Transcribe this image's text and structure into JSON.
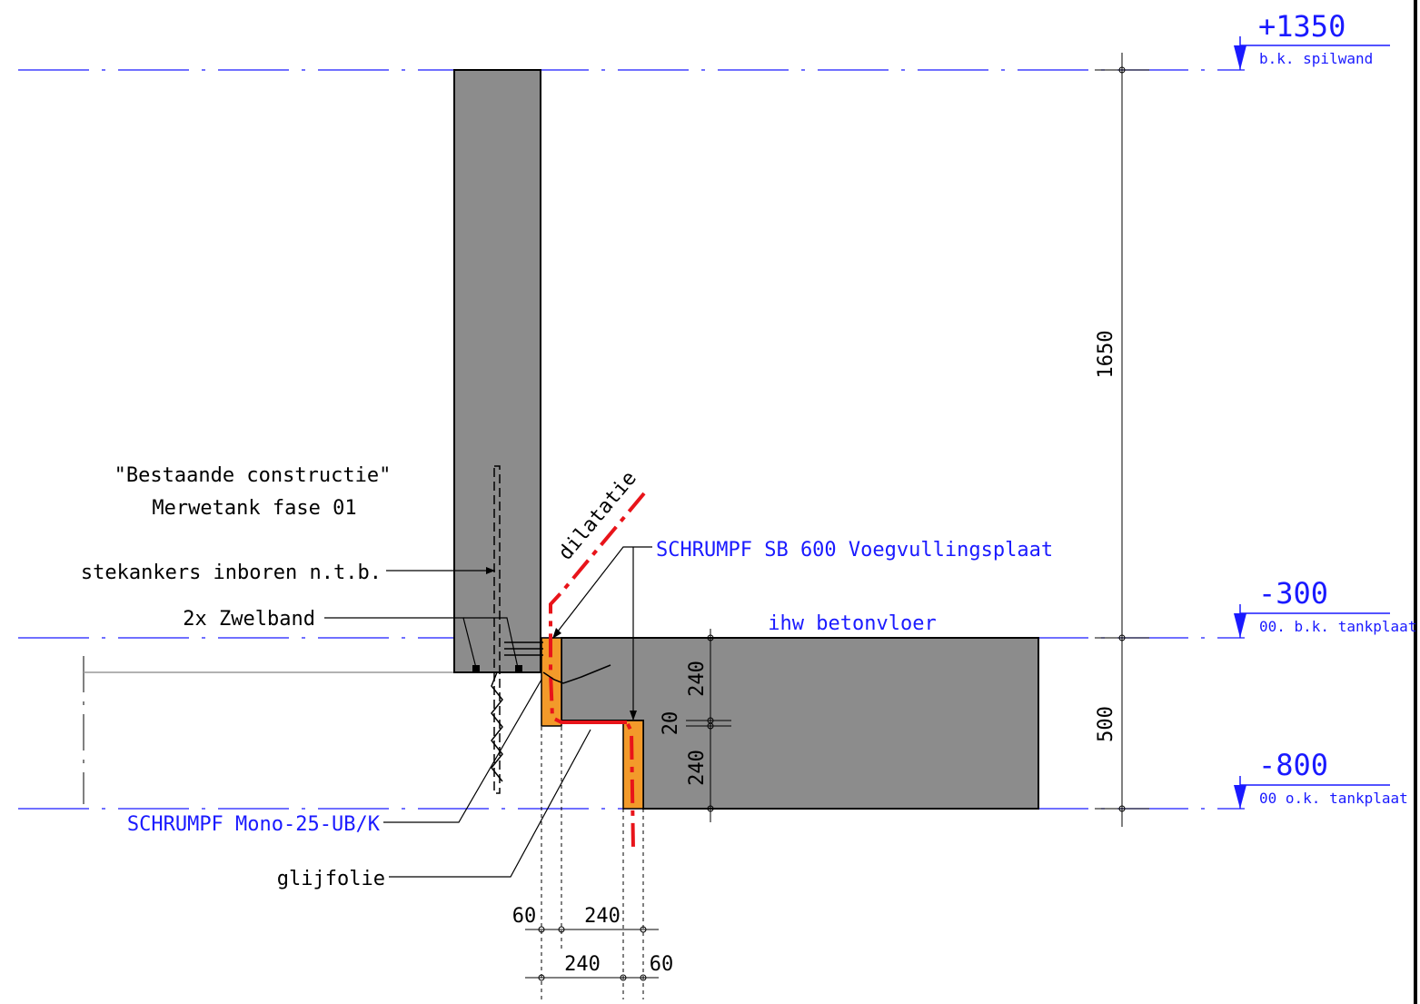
{
  "levels": {
    "top": {
      "value": "+1350",
      "label": "b.k. spilwand"
    },
    "mid": {
      "value": "-300",
      "label": "00. b.k. tankplaat"
    },
    "bottom": {
      "value": "-800",
      "label": "00 o.k. tankplaat"
    }
  },
  "labels": {
    "existing_line1": "\"Bestaande constructie\"",
    "existing_line2": "Merwetank fase 01",
    "stekankers": "stekankers inboren n.t.b.",
    "zwelband": "2x Zwelband",
    "schrumpf_sb": "SCHRUMPF SB 600 Voegvullingsplaat",
    "betonvloer": "ihw betonvloer",
    "dilatatie": "dilatatie",
    "schrumpf_mono": "SCHRUMPF Mono-25-UB/K",
    "glijfolie": "glijfolie"
  },
  "dimensions": {
    "vertical_total_top": "1650",
    "vertical_total_bottom": "500",
    "step_upper": "240",
    "step_gap": "20",
    "step_lower": "240",
    "bottom_60_left": "60",
    "bottom_240_top": "240",
    "bottom_240_bottom": "240",
    "bottom_60_right": "60"
  },
  "colors": {
    "concrete": "#8c8c8c",
    "filler": "#f39a2a",
    "dilatation": "#e8141a",
    "level_blue": "#1a1aff"
  }
}
